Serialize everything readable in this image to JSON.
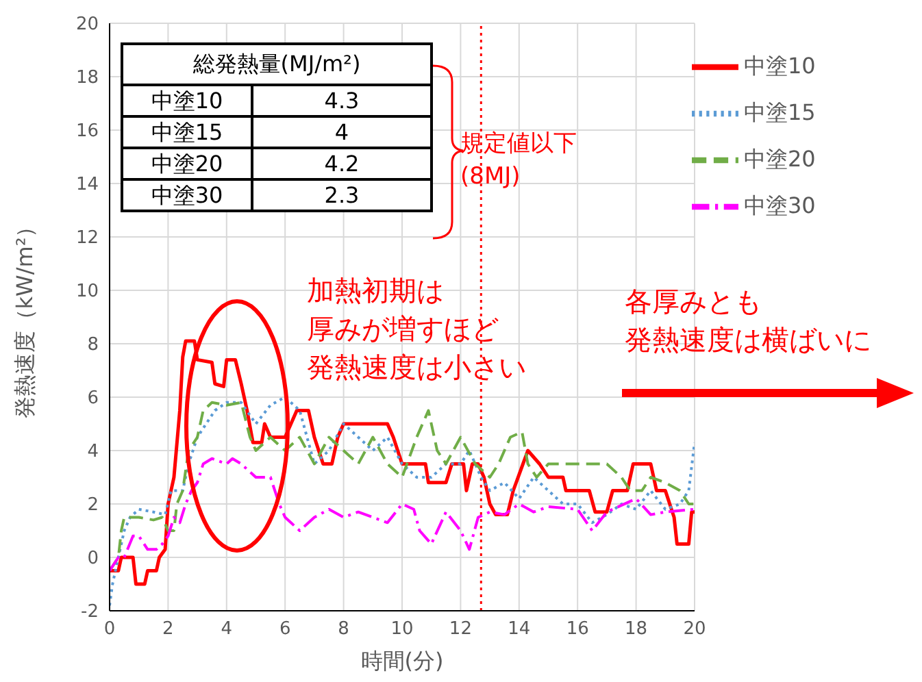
{
  "chart_data": {
    "type": "line",
    "xlabel": "時間(分)",
    "ylabel": "発熱速度（kW/m²）",
    "xlim": [
      0,
      20
    ],
    "xticks": [
      0,
      2,
      4,
      6,
      8,
      10,
      12,
      14,
      16,
      18,
      20
    ],
    "ylim": [
      -2,
      20
    ],
    "yticks": [
      -2,
      0,
      2,
      4,
      6,
      8,
      10,
      12,
      14,
      16,
      18,
      20
    ],
    "grid": true,
    "legend": "top right",
    "marker": "none",
    "ref_lines": [
      {
        "axis": "x",
        "value": 12.7,
        "color": "#ff0000",
        "line_style": "dotted"
      }
    ],
    "annotations": [
      "総発熱量(MJ/m²)",
      "中塗10",
      "4.3",
      "中塗15",
      "4",
      "中塗20",
      "4.2",
      "中塗30",
      "2.3",
      "規定値以下\n(8MJ)",
      "加熱初期は",
      "厚みが増すほど",
      "発熱速度は小さい",
      "各厚みとも",
      "発熱速度は横ばいに"
    ],
    "series": [
      {
        "name": "中塗10",
        "color": "#ff0000",
        "line_style": "solid",
        "x": [
          0,
          0.3,
          0.4,
          0.8,
          0.9,
          1.2,
          1.3,
          1.6,
          1.7,
          1.9,
          2.0,
          2.2,
          2.4,
          2.5,
          2.6,
          2.9,
          3.0,
          3.5,
          3.6,
          3.9,
          4.0,
          4.3,
          4.5,
          4.7,
          4.9,
          5.2,
          5.3,
          5.5,
          6.0,
          6.2,
          6.4,
          6.8,
          7.0,
          7.3,
          7.6,
          7.8,
          8.0,
          9.5,
          9.7,
          10.0,
          10.8,
          10.9,
          11.5,
          11.7,
          12.1,
          12.2,
          12.4,
          12.6,
          12.8,
          13.0,
          13.2,
          13.6,
          13.8,
          14.3,
          14.7,
          15.0,
          15.5,
          15.6,
          16.4,
          16.6,
          17.0,
          17.2,
          17.7,
          17.9,
          18.5,
          18.7,
          19.0,
          19.3,
          19.4,
          19.8,
          19.9,
          20
        ],
        "values": [
          -0.5,
          -0.5,
          0,
          0,
          -1,
          -1,
          -0.5,
          -0.5,
          0,
          0.3,
          2,
          3,
          5.5,
          7.5,
          8.1,
          8.1,
          7.4,
          7.3,
          6.5,
          6.4,
          7.4,
          7.4,
          6.5,
          5.5,
          4.3,
          4.3,
          5,
          4.5,
          4.5,
          5,
          5.5,
          5.5,
          4.5,
          3.5,
          3.5,
          4.5,
          5,
          5,
          4.5,
          3.5,
          3.5,
          2.8,
          2.8,
          3.5,
          3.5,
          2.5,
          3.5,
          3.5,
          3,
          2,
          1.6,
          1.6,
          2.5,
          4,
          3.5,
          3,
          3,
          2.5,
          2.5,
          1.7,
          1.7,
          2.5,
          2.5,
          3.5,
          3.5,
          2.5,
          2.5,
          1.5,
          0.5,
          0.5,
          1.7,
          1.7
        ]
      },
      {
        "name": "中塗15",
        "color": "#5b9bd5",
        "line_style": "dotted",
        "x": [
          0,
          0.1,
          0.3,
          0.5,
          0.7,
          1.0,
          1.5,
          1.9,
          2.1,
          2.5,
          2.7,
          3.0,
          3.3,
          3.6,
          4.0,
          4.5,
          5.0,
          5.5,
          6.0,
          6.5,
          7.0,
          7.5,
          8.0,
          8.5,
          9.0,
          9.5,
          10.0,
          10.5,
          11.0,
          11.5,
          12.0,
          12.3,
          12.7,
          13.0,
          13.5,
          14.0,
          14.5,
          15.0,
          15.5,
          16.0,
          16.5,
          17.0,
          17.5,
          18.0,
          18.5,
          19.0,
          19.5,
          19.8,
          20
        ],
        "values": [
          -1.8,
          -1,
          0,
          1,
          1.5,
          1.8,
          1.7,
          1.6,
          2.5,
          2.5,
          3.5,
          4.5,
          5,
          5.5,
          5.8,
          5.8,
          5,
          5.7,
          6,
          5.5,
          3.5,
          4,
          5,
          4.5,
          4,
          4.5,
          3.5,
          3,
          3,
          3.5,
          3.5,
          4,
          3,
          2.5,
          2.8,
          2.2,
          3,
          2.5,
          2,
          2,
          1.3,
          1.6,
          2,
          1.8,
          2.5,
          1.8,
          2,
          2.5,
          4.3
        ]
      },
      {
        "name": "中塗20",
        "color": "#70ad47",
        "line_style": "dashed",
        "x": [
          0,
          0.3,
          0.4,
          0.5,
          1.0,
          1.5,
          1.8,
          2.0,
          2.2,
          2.3,
          2.5,
          2.7,
          3.0,
          3.2,
          3.5,
          4.0,
          4.5,
          4.8,
          5.0,
          5.5,
          6.0,
          6.5,
          7.0,
          7.5,
          8.0,
          8.5,
          9.0,
          9.5,
          10.0,
          10.5,
          10.9,
          11.2,
          11.5,
          12.0,
          12.5,
          13.0,
          13.3,
          13.7,
          14.1,
          14.3,
          14.6,
          15.0,
          16.0,
          17.0,
          17.5,
          17.8,
          18.2,
          18.5,
          19.0,
          19.5,
          19.8,
          20
        ],
        "values": [
          -0.5,
          0,
          1,
          1.5,
          1.5,
          1.4,
          1.5,
          1,
          1,
          2,
          2.5,
          4,
          4.5,
          5.5,
          5.8,
          5.7,
          5.8,
          4.5,
          4,
          4.5,
          4,
          4.5,
          3.5,
          4.5,
          4,
          3.5,
          4.5,
          3.5,
          3,
          4.5,
          5.5,
          4,
          3.5,
          4.5,
          3.5,
          3,
          3.5,
          4.5,
          4.7,
          3.5,
          3,
          3.5,
          3.5,
          3.5,
          3,
          2.5,
          2.5,
          3,
          2.8,
          2.5,
          2,
          2
        ]
      },
      {
        "name": "中塗30",
        "color": "#ff00ff",
        "line_style": "dashdot",
        "x": [
          0,
          0.3,
          0.5,
          0.8,
          1.0,
          1.3,
          1.6,
          1.8,
          2.0,
          2.2,
          2.4,
          2.6,
          2.8,
          3.0,
          3.2,
          3.5,
          4.0,
          4.2,
          4.5,
          5.0,
          5.5,
          5.8,
          6.0,
          6.5,
          7.0,
          7.5,
          8.0,
          8.5,
          9.0,
          9.5,
          10.0,
          10.4,
          10.6,
          11.0,
          11.5,
          12.0,
          12.3,
          12.6,
          13.0,
          13.5,
          14.0,
          14.5,
          15.0,
          16.0,
          16.5,
          17.0,
          18.0,
          18.5,
          19.0,
          20
        ],
        "values": [
          -0.5,
          0,
          0,
          0.8,
          0.8,
          0.3,
          0.3,
          0.5,
          0.8,
          1.5,
          1.3,
          2,
          2.5,
          2.8,
          3.5,
          3.7,
          3.5,
          3.7,
          3.5,
          3,
          3,
          2,
          1.5,
          1,
          1.5,
          1.8,
          1.5,
          1.7,
          1.5,
          1.3,
          2,
          1.8,
          1,
          0.5,
          1.7,
          1,
          0.3,
          1.5,
          1.7,
          1.6,
          2,
          1.7,
          1.9,
          1.8,
          1,
          1.7,
          2.2,
          1.6,
          1.7,
          1.8
        ]
      }
    ]
  }
}
